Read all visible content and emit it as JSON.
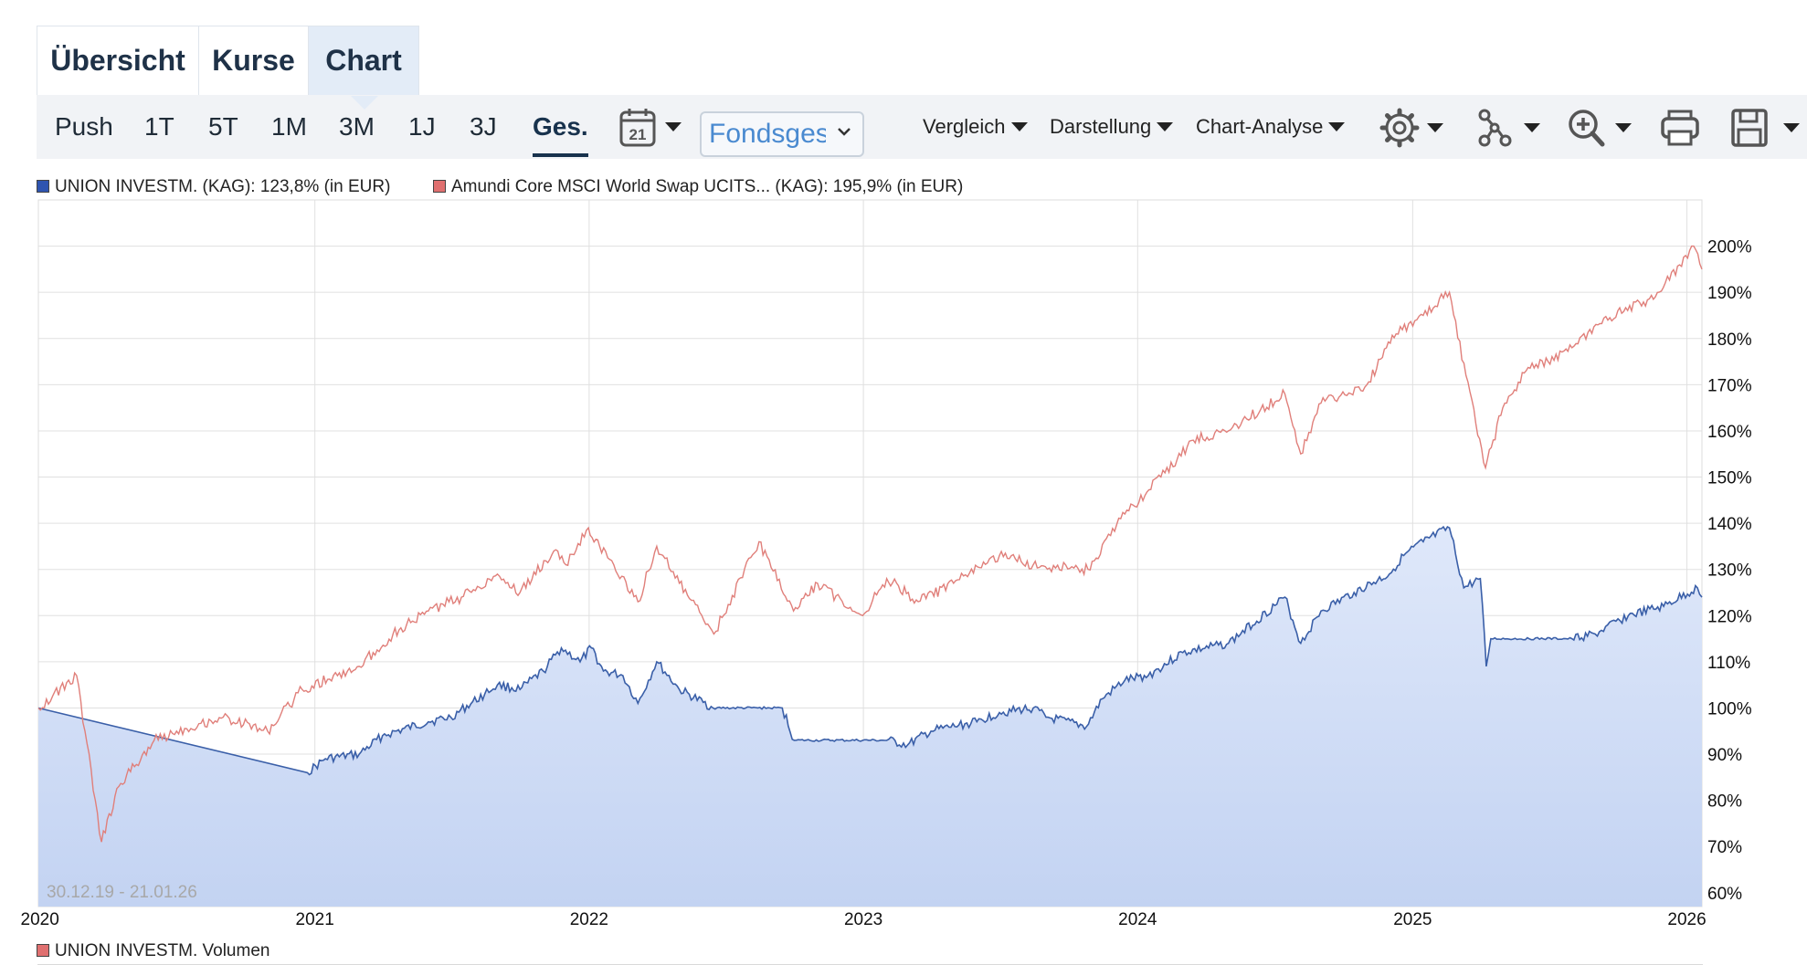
{
  "tabs": [
    {
      "label": "Übersicht",
      "active": false
    },
    {
      "label": "Kurse",
      "active": false
    },
    {
      "label": "Chart",
      "active": true
    }
  ],
  "toolbar": {
    "ranges": [
      "Push",
      "1T",
      "5T",
      "1M",
      "3M",
      "1J",
      "3J",
      "Ges."
    ],
    "active_range": "Ges.",
    "calendar_icon": "calendar-icon",
    "calendar_day": "21",
    "select_value": "Fondsgesellschaft",
    "menus": [
      "Vergleich",
      "Darstellung",
      "Chart-Analyse"
    ],
    "icons": [
      "gear-icon",
      "network-icon",
      "zoom-in-icon",
      "print-icon",
      "save-icon"
    ]
  },
  "colors": {
    "series1_line": "#3a5fa8",
    "series1_fill": "#c3d3f2",
    "series1_swatch": "#2f54b0",
    "series2_line": "#e07f7a",
    "series2_swatch": "#e07070",
    "grid": "#e0e0e0",
    "toolbar_bg": "#f1f3f6",
    "active_tab_bg": "#e3ecf7"
  },
  "chart_data": {
    "type": "line",
    "date_range_label": "30.12.19 - 21.01.26",
    "x_tick_labels": [
      "2020",
      "2021",
      "2022",
      "2023",
      "2024",
      "2025",
      "2026"
    ],
    "y_tick_labels": [
      "60%",
      "70%",
      "80%",
      "90%",
      "100%",
      "110%",
      "120%",
      "130%",
      "140%",
      "150%",
      "160%",
      "170%",
      "180%",
      "190%",
      "200%"
    ],
    "xlim": [
      "2019-12-30",
      "2026-01-21"
    ],
    "ylim": [
      57,
      210
    ],
    "grid": true,
    "legend_position": "top-left",
    "y_axis_side": "right",
    "series": [
      {
        "name": "UNION INVESTM. (KAG): 123,8% (in EUR)",
        "style": "area",
        "points": [
          [
            "2019-12-30",
            100
          ],
          [
            "2020-12-22",
            86
          ],
          [
            "2021-01-15",
            89
          ],
          [
            "2021-03-01",
            90
          ],
          [
            "2021-04-01",
            94
          ],
          [
            "2021-06-01",
            97
          ],
          [
            "2021-07-01",
            98
          ],
          [
            "2021-08-15",
            103
          ],
          [
            "2021-09-01",
            105
          ],
          [
            "2021-10-01",
            104
          ],
          [
            "2021-11-01",
            108
          ],
          [
            "2021-11-25",
            113
          ],
          [
            "2021-12-20",
            110
          ],
          [
            "2022-01-04",
            113
          ],
          [
            "2022-01-20",
            108
          ],
          [
            "2022-02-15",
            107
          ],
          [
            "2022-03-07",
            101
          ],
          [
            "2022-04-01",
            110
          ],
          [
            "2022-05-01",
            104
          ],
          [
            "2022-06-15",
            100
          ],
          [
            "2022-09-15",
            100
          ],
          [
            "2022-10-01",
            93
          ],
          [
            "2023-02-01",
            93
          ],
          [
            "2023-03-01",
            92
          ],
          [
            "2023-04-01",
            95
          ],
          [
            "2023-06-01",
            97
          ],
          [
            "2023-07-01",
            99
          ],
          [
            "2023-08-15",
            100
          ],
          [
            "2023-09-01",
            98
          ],
          [
            "2023-10-25",
            96
          ],
          [
            "2023-11-15",
            102
          ],
          [
            "2023-12-15",
            106
          ],
          [
            "2024-01-15",
            107
          ],
          [
            "2024-03-01",
            112
          ],
          [
            "2024-05-01",
            114
          ],
          [
            "2024-07-15",
            124
          ],
          [
            "2024-08-05",
            114
          ],
          [
            "2024-09-01",
            121
          ],
          [
            "2024-10-15",
            125
          ],
          [
            "2024-12-01",
            129
          ],
          [
            "2024-12-20",
            133
          ],
          [
            "2025-01-15",
            136
          ],
          [
            "2025-02-19",
            139
          ],
          [
            "2025-03-10",
            126
          ],
          [
            "2025-04-01",
            128
          ],
          [
            "2025-04-09",
            109
          ],
          [
            "2025-04-15",
            115
          ],
          [
            "2025-08-01",
            115
          ],
          [
            "2025-09-01",
            116
          ],
          [
            "2025-10-15",
            120
          ],
          [
            "2025-12-01",
            122
          ],
          [
            "2026-01-15",
            126
          ],
          [
            "2026-01-21",
            124
          ]
        ]
      },
      {
        "name": "Amundi Core MSCI World Swap UCITS... (KAG): 195,9% (in EUR)",
        "style": "line",
        "points": [
          [
            "2019-12-30",
            100
          ],
          [
            "2020-02-19",
            107
          ],
          [
            "2020-03-01",
            95
          ],
          [
            "2020-03-23",
            71
          ],
          [
            "2020-04-15",
            83
          ],
          [
            "2020-06-01",
            93
          ],
          [
            "2020-07-01",
            95
          ],
          [
            "2020-09-01",
            98
          ],
          [
            "2020-10-30",
            95
          ],
          [
            "2020-12-15",
            104
          ],
          [
            "2021-01-31",
            107
          ],
          [
            "2021-03-01",
            109
          ],
          [
            "2021-04-15",
            116
          ],
          [
            "2021-06-01",
            121
          ],
          [
            "2021-07-15",
            124
          ],
          [
            "2021-09-01",
            129
          ],
          [
            "2021-10-01",
            125
          ],
          [
            "2021-11-15",
            134
          ],
          [
            "2021-12-01",
            131
          ],
          [
            "2021-12-31",
            139
          ],
          [
            "2022-01-15",
            135
          ],
          [
            "2022-03-07",
            123
          ],
          [
            "2022-04-01",
            135
          ],
          [
            "2022-05-01",
            127
          ],
          [
            "2022-06-16",
            116
          ],
          [
            "2022-08-15",
            136
          ],
          [
            "2022-09-30",
            121
          ],
          [
            "2022-11-01",
            127
          ],
          [
            "2022-12-31",
            120
          ],
          [
            "2023-02-01",
            128
          ],
          [
            "2023-03-15",
            123
          ],
          [
            "2023-05-01",
            127
          ],
          [
            "2023-07-01",
            133
          ],
          [
            "2023-08-15",
            131
          ],
          [
            "2023-10-27",
            130
          ],
          [
            "2023-12-15",
            142
          ],
          [
            "2024-02-01",
            150
          ],
          [
            "2024-03-15",
            158
          ],
          [
            "2024-05-01",
            160
          ],
          [
            "2024-07-15",
            168
          ],
          [
            "2024-08-05",
            155
          ],
          [
            "2024-09-01",
            166
          ],
          [
            "2024-11-01",
            170
          ],
          [
            "2024-12-10",
            181
          ],
          [
            "2025-01-15",
            185
          ],
          [
            "2025-02-19",
            190
          ],
          [
            "2025-03-13",
            172
          ],
          [
            "2025-04-08",
            152
          ],
          [
            "2025-05-01",
            165
          ],
          [
            "2025-06-01",
            173
          ],
          [
            "2025-08-01",
            178
          ],
          [
            "2025-10-01",
            186
          ],
          [
            "2025-11-20",
            189
          ],
          [
            "2026-01-10",
            200
          ],
          [
            "2026-01-21",
            195
          ]
        ]
      }
    ],
    "volume_panel_label": "UNION INVESTM. Volumen"
  }
}
